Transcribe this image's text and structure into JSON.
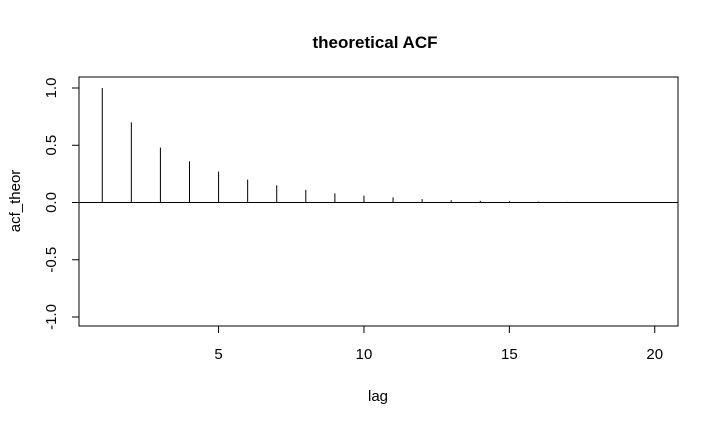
{
  "chart_data": {
    "type": "bar",
    "title": "theoretical ACF",
    "xlabel": "lag",
    "ylabel": "acf_theor",
    "xlim": [
      0.2,
      20.8
    ],
    "ylim": [
      -1.0,
      1.0
    ],
    "x_ticks": [
      5,
      10,
      15,
      20
    ],
    "y_ticks": [
      -1.0,
      -0.5,
      0.0,
      0.5,
      1.0
    ],
    "x_tick_labels": [
      "5",
      "10",
      "15",
      "20"
    ],
    "y_tick_labels": [
      "-1.0",
      "-0.5",
      "0.0",
      "0.5",
      "1.0"
    ],
    "horizontal_reference_line": 0,
    "grid": false,
    "series": [
      {
        "x": [
          1,
          2,
          3,
          4,
          5,
          6,
          7,
          8,
          9,
          10,
          11,
          12,
          13,
          14,
          15,
          16,
          17,
          18,
          19,
          20
        ],
        "values": [
          1.0,
          0.7,
          0.48,
          0.36,
          0.27,
          0.2,
          0.15,
          0.11,
          0.08,
          0.06,
          0.045,
          0.03,
          0.02,
          0.015,
          0.011,
          0.008,
          0.006,
          0.004,
          0.003,
          0.002
        ]
      }
    ]
  }
}
